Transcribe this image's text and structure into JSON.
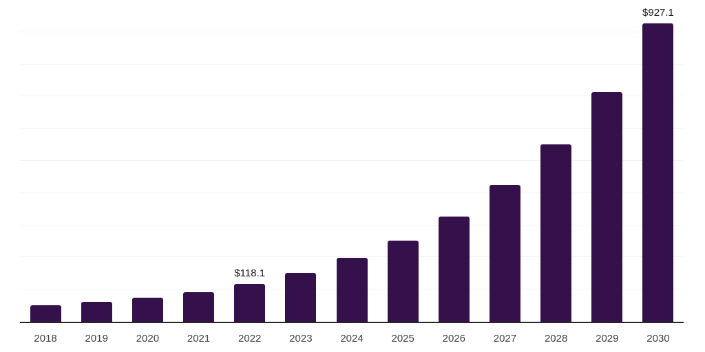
{
  "chart_data": {
    "type": "bar",
    "title": "",
    "xlabel": "",
    "ylabel": "",
    "categories": [
      "2018",
      "2019",
      "2020",
      "2021",
      "2022",
      "2023",
      "2024",
      "2025",
      "2026",
      "2027",
      "2028",
      "2029",
      "2030"
    ],
    "values": [
      51,
      61,
      75,
      91,
      118.1,
      151,
      198,
      252,
      327,
      426,
      552,
      714,
      927.1
    ],
    "value_labels": {
      "2022": "$118.1",
      "2030": "$927.1"
    },
    "ylim": [
      0,
      1000
    ],
    "grid_step": 100,
    "grid": true,
    "legend": false,
    "y_axis_tick_labels_visible": false,
    "bar_color": "#35114B",
    "axis_line_color": "#262626",
    "gridline_color": "#F2F2F2",
    "tick_label_color": "#404040",
    "value_label_color": "#1A1A1A"
  }
}
